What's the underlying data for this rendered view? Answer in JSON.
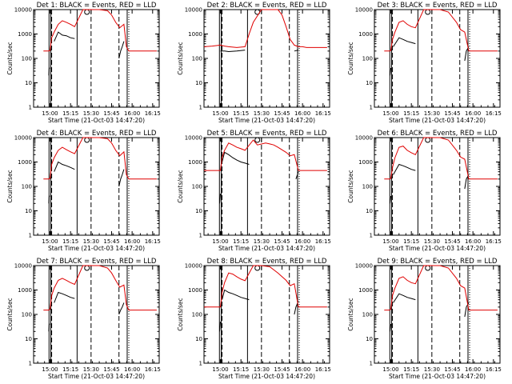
{
  "chart_data": [
    {
      "type": "line",
      "title": "Det 1: BLACK = Events, RED = LLD",
      "xlabel": "Start Time (21-Oct-03 14:47:20)",
      "ylabel": "Counts/sec",
      "yscale": "log",
      "ylim": [
        1,
        10000
      ],
      "xticks": [
        "15:00",
        "15:15",
        "15:30",
        "15:45",
        "16:00",
        "16:15"
      ],
      "yticks": [
        "1",
        "10",
        "100",
        "1000",
        "10000"
      ],
      "series": [
        {
          "color": "#000000",
          "x": [
            14.97,
            14.985,
            14.99,
            15.0,
            15.01,
            15.05,
            15.1,
            15.15,
            15.2,
            15.25,
            15.3,
            15.83,
            15.84,
            15.86,
            15.88,
            15.9,
            15.93,
            15.95
          ],
          "y": [
            null,
            20,
            40,
            40,
            null,
            500,
            1200,
            900,
            850,
            700,
            650,
            null,
            100,
            200,
            300,
            500,
            null,
            null
          ]
        },
        {
          "color": "#e00000",
          "x": [
            14.92,
            14.95,
            14.98,
            15.0,
            15.02,
            15.05,
            15.1,
            15.15,
            15.2,
            15.25,
            15.3,
            15.4,
            15.5,
            15.6,
            15.7,
            15.75,
            15.8,
            15.85,
            15.9,
            15.93,
            15.96,
            16.0,
            16.05,
            16.1,
            16.15,
            16.2,
            16.25,
            16.3
          ],
          "y": [
            200,
            200,
            200,
            210,
            700,
            1200,
            2500,
            3500,
            3000,
            2500,
            2000,
            10000,
            10000,
            10000,
            9000,
            6000,
            3000,
            1800,
            2500,
            300,
            200,
            200,
            200,
            200,
            200,
            200,
            200,
            200
          ]
        }
      ]
    },
    {
      "type": "line",
      "title": "Det 2: BLACK = Events, RED = LLD",
      "xlabel": "Start Time (21-Oct-03 14:47:20)",
      "ylabel": "Counts/sec",
      "yscale": "log",
      "ylim": [
        1,
        10000
      ],
      "xticks": [
        "15:00",
        "15:15",
        "15:30",
        "15:45",
        "16:00",
        "16:15"
      ],
      "yticks": [
        "1",
        "10",
        "100",
        "1000",
        "10000"
      ],
      "series": [
        {
          "color": "#000000",
          "x": [
            15.0,
            15.01,
            15.05,
            15.1,
            15.2,
            15.3,
            15.35,
            15.4,
            15.85,
            15.9,
            15.95,
            16.0
          ],
          "y": [
            200,
            200,
            200,
            190,
            200,
            220,
            null,
            null,
            null,
            200,
            220,
            null
          ]
        },
        {
          "color": "#e00000",
          "x": [
            14.8,
            14.9,
            15.0,
            15.05,
            15.1,
            15.2,
            15.3,
            15.35,
            15.4,
            15.5,
            15.6,
            15.7,
            15.75,
            15.8,
            15.85,
            15.9,
            15.95,
            16.0,
            16.05,
            16.1,
            16.2,
            16.3
          ],
          "y": [
            300,
            320,
            350,
            320,
            300,
            280,
            300,
            1000,
            3000,
            10000,
            10000,
            10000,
            6000,
            2000,
            600,
            350,
            300,
            300,
            280,
            280,
            280,
            280
          ]
        }
      ]
    },
    {
      "type": "line",
      "title": "Det 3: BLACK = Events, RED = LLD",
      "xlabel": "Start Time (21-Oct-03 14:47:20)",
      "ylabel": "Counts/sec",
      "yscale": "log",
      "ylim": [
        1,
        10000
      ],
      "xticks": [
        "15:00",
        "15:15",
        "15:30",
        "15:45",
        "16:00",
        "16:15"
      ],
      "yticks": [
        "1",
        "10",
        "100",
        "1000",
        "10000"
      ],
      "series": [
        {
          "color": "#000000",
          "x": [
            14.98,
            14.99,
            15.0,
            15.01,
            15.03,
            15.1,
            15.15,
            15.2,
            15.25,
            15.3,
            15.85,
            15.9,
            15.92,
            15.95,
            15.98,
            16.0
          ],
          "y": [
            null,
            20,
            40,
            null,
            300,
            700,
            600,
            500,
            450,
            400,
            null,
            80,
            200,
            300,
            null,
            null
          ]
        },
        {
          "color": "#e00000",
          "x": [
            14.92,
            14.95,
            14.98,
            15.0,
            15.02,
            15.05,
            15.1,
            15.15,
            15.2,
            15.25,
            15.3,
            15.4,
            15.5,
            15.6,
            15.7,
            15.8,
            15.85,
            15.9,
            15.95,
            16.0,
            16.05,
            16.1,
            16.2,
            16.3
          ],
          "y": [
            200,
            200,
            200,
            210,
            600,
            1200,
            3000,
            3500,
            2500,
            2000,
            1800,
            10000,
            10000,
            10000,
            8000,
            3000,
            1500,
            1200,
            200,
            200,
            200,
            200,
            200,
            200
          ]
        }
      ]
    },
    {
      "type": "line",
      "title": "Det 4: BLACK = Events, RED = LLD",
      "xlabel": "Start Time (21-Oct-03 14:47:20)",
      "ylabel": "Counts/sec",
      "yscale": "log",
      "ylim": [
        1,
        10000
      ],
      "xticks": [
        "15:00",
        "15:15",
        "15:30",
        "15:45",
        "16:00",
        "16:15"
      ],
      "yticks": [
        "1",
        "10",
        "100",
        "1000",
        "10000"
      ],
      "series": [
        {
          "color": "#000000",
          "x": [
            14.97,
            14.985,
            14.99,
            15.0,
            15.01,
            15.05,
            15.1,
            15.15,
            15.2,
            15.25,
            15.3,
            15.83,
            15.84,
            15.86,
            15.88,
            15.9,
            15.93,
            15.95
          ],
          "y": [
            null,
            20,
            40,
            40,
            null,
            400,
            1000,
            800,
            700,
            600,
            500,
            null,
            100,
            200,
            300,
            500,
            null,
            null
          ]
        },
        {
          "color": "#e00000",
          "x": [
            14.92,
            14.95,
            14.98,
            15.0,
            15.02,
            15.05,
            15.1,
            15.15,
            15.2,
            15.25,
            15.3,
            15.4,
            15.5,
            15.6,
            15.7,
            15.75,
            15.8,
            15.85,
            15.9,
            15.93,
            15.96,
            16.0,
            16.05,
            16.1,
            16.15,
            16.2,
            16.25,
            16.3
          ],
          "y": [
            200,
            200,
            200,
            210,
            800,
            1500,
            3000,
            4000,
            3200,
            2600,
            2200,
            10000,
            10000,
            10000,
            9000,
            6000,
            3000,
            1800,
            2600,
            300,
            200,
            200,
            200,
            200,
            200,
            200,
            200,
            200
          ]
        }
      ]
    },
    {
      "type": "line",
      "title": "Det 5: BLACK = Events, RED = LLD",
      "xlabel": "Start Time (21-Oct-03 14:47:20)",
      "ylabel": "Counts/sec",
      "yscale": "log",
      "ylim": [
        1,
        10000
      ],
      "xticks": [
        "15:00",
        "15:15",
        "15:30",
        "15:45",
        "16:00",
        "16:15"
      ],
      "yticks": [
        "1",
        "10",
        "100",
        "1000",
        "10000"
      ],
      "series": [
        {
          "color": "#000000",
          "x": [
            14.98,
            14.99,
            15.0,
            15.01,
            15.02,
            15.05,
            15.1,
            15.15,
            15.2,
            15.25,
            15.3,
            15.35,
            15.9,
            15.92,
            15.95,
            15.98,
            16.0
          ],
          "y": [
            null,
            20,
            50,
            null,
            1000,
            2500,
            2000,
            1500,
            1200,
            1000,
            900,
            800,
            null,
            200,
            400,
            null,
            null
          ]
        },
        {
          "color": "#e00000",
          "x": [
            14.8,
            14.9,
            15.0,
            15.02,
            15.05,
            15.1,
            15.15,
            15.2,
            15.25,
            15.3,
            15.4,
            15.45,
            15.55,
            15.6,
            15.65,
            15.7,
            15.8,
            15.85,
            15.9,
            15.95,
            16.0,
            16.05,
            16.1,
            16.2,
            16.3
          ],
          "y": [
            450,
            450,
            450,
            1500,
            3000,
            6000,
            5000,
            4000,
            3500,
            3000,
            8000,
            5000,
            6000,
            5500,
            5000,
            4000,
            2500,
            1800,
            2000,
            450,
            450,
            450,
            450,
            450,
            450
          ]
        }
      ]
    },
    {
      "type": "line",
      "title": "Det 6: BLACK = Events, RED = LLD",
      "xlabel": "Start Time (21-Oct-03 14:47:20)",
      "ylabel": "Counts/sec",
      "yscale": "log",
      "ylim": [
        1,
        10000
      ],
      "xticks": [
        "15:00",
        "15:15",
        "15:30",
        "15:45",
        "16:00",
        "16:15"
      ],
      "yticks": [
        "1",
        "10",
        "100",
        "1000",
        "10000"
      ],
      "series": [
        {
          "color": "#000000",
          "x": [
            14.98,
            14.99,
            15.0,
            15.01,
            15.03,
            15.1,
            15.15,
            15.2,
            15.25,
            15.3,
            15.85,
            15.9,
            15.92,
            15.95,
            15.98,
            16.0
          ],
          "y": [
            null,
            20,
            40,
            null,
            300,
            800,
            700,
            600,
            500,
            450,
            null,
            80,
            200,
            300,
            null,
            null
          ]
        },
        {
          "color": "#e00000",
          "x": [
            14.92,
            14.95,
            14.98,
            15.0,
            15.02,
            15.05,
            15.1,
            15.15,
            15.2,
            15.25,
            15.3,
            15.4,
            15.5,
            15.6,
            15.7,
            15.8,
            15.85,
            15.9,
            15.95,
            16.0,
            16.05,
            16.1,
            16.2,
            16.3
          ],
          "y": [
            200,
            200,
            200,
            210,
            600,
            1500,
            4000,
            4500,
            3000,
            2400,
            2000,
            10000,
            10000,
            10000,
            8000,
            3000,
            1600,
            1300,
            200,
            200,
            200,
            200,
            200,
            200
          ]
        }
      ]
    },
    {
      "type": "line",
      "title": "Det 7: BLACK = Events, RED = LLD",
      "xlabel": "Start Time (21-Oct-03 14:47:20)",
      "ylabel": "Counts/sec",
      "yscale": "log",
      "ylim": [
        1,
        10000
      ],
      "xticks": [
        "15:00",
        "15:15",
        "15:30",
        "15:45",
        "16:00",
        "16:15"
      ],
      "yticks": [
        "1",
        "10",
        "100",
        "1000",
        "10000"
      ],
      "series": [
        {
          "color": "#000000",
          "x": [
            14.97,
            14.985,
            14.99,
            15.0,
            15.01,
            15.05,
            15.1,
            15.15,
            15.2,
            15.25,
            15.3,
            15.83,
            15.84,
            15.86,
            15.88,
            15.9,
            15.93,
            15.95
          ],
          "y": [
            null,
            20,
            40,
            40,
            null,
            300,
            800,
            700,
            600,
            500,
            450,
            null,
            100,
            150,
            200,
            300,
            null,
            null
          ]
        },
        {
          "color": "#e00000",
          "x": [
            14.92,
            14.95,
            14.98,
            15.0,
            15.02,
            15.05,
            15.1,
            15.15,
            15.2,
            15.25,
            15.3,
            15.4,
            15.5,
            15.6,
            15.7,
            15.75,
            15.8,
            15.85,
            15.9,
            15.93,
            15.96,
            16.0,
            16.05,
            16.1,
            16.15,
            16.2,
            16.25,
            16.3
          ],
          "y": [
            150,
            150,
            150,
            160,
            600,
            1200,
            2500,
            3000,
            2500,
            2000,
            1700,
            10000,
            10000,
            10000,
            8000,
            5000,
            2500,
            1300,
            1600,
            250,
            150,
            150,
            150,
            150,
            150,
            150,
            150,
            150
          ]
        }
      ]
    },
    {
      "type": "line",
      "title": "Det 8: BLACK = Events, RED = LLD",
      "xlabel": "Start Time (21-Oct-03 14:47:20)",
      "ylabel": "Counts/sec",
      "yscale": "log",
      "ylim": [
        1,
        10000
      ],
      "xticks": [
        "15:00",
        "15:15",
        "15:30",
        "15:45",
        "16:00",
        "16:15"
      ],
      "yticks": [
        "1",
        "10",
        "100",
        "1000",
        "10000"
      ],
      "series": [
        {
          "color": "#000000",
          "x": [
            14.98,
            14.99,
            15.0,
            15.01,
            15.02,
            15.05,
            15.1,
            15.15,
            15.2,
            15.25,
            15.3,
            15.35,
            15.85,
            15.9,
            15.92,
            15.95,
            15.98,
            16.0
          ],
          "y": [
            null,
            20,
            50,
            null,
            400,
            1000,
            800,
            700,
            600,
            500,
            450,
            400,
            null,
            100,
            200,
            350,
            null,
            null
          ]
        },
        {
          "color": "#e00000",
          "x": [
            14.8,
            14.9,
            15.0,
            15.02,
            15.05,
            15.1,
            15.15,
            15.2,
            15.25,
            15.3,
            15.4,
            15.5,
            15.6,
            15.7,
            15.8,
            15.85,
            15.9,
            15.95,
            16.0,
            16.05,
            16.1,
            16.2,
            16.3
          ],
          "y": [
            200,
            200,
            200,
            800,
            2000,
            5000,
            4500,
            3500,
            2800,
            2400,
            10000,
            10000,
            9000,
            5000,
            2500,
            1500,
            1800,
            200,
            200,
            200,
            200,
            200,
            200
          ]
        }
      ]
    },
    {
      "type": "line",
      "title": "Det 9: BLACK = Events, RED = LLD",
      "xlabel": "Start Time (21-Oct-03 14:47:20)",
      "ylabel": "Counts/sec",
      "yscale": "log",
      "ylim": [
        1,
        10000
      ],
      "xticks": [
        "15:00",
        "15:15",
        "15:30",
        "15:45",
        "16:00",
        "16:15"
      ],
      "yticks": [
        "1",
        "10",
        "100",
        "1000",
        "10000"
      ],
      "series": [
        {
          "color": "#000000",
          "x": [
            14.98,
            14.99,
            15.0,
            15.01,
            15.03,
            15.1,
            15.15,
            15.2,
            15.25,
            15.3,
            15.85,
            15.9,
            15.92,
            15.95,
            15.98,
            16.0
          ],
          "y": [
            null,
            20,
            40,
            null,
            300,
            700,
            600,
            500,
            450,
            400,
            null,
            80,
            200,
            300,
            null,
            null
          ]
        },
        {
          "color": "#e00000",
          "x": [
            14.92,
            14.95,
            14.98,
            15.0,
            15.02,
            15.05,
            15.1,
            15.15,
            15.2,
            15.25,
            15.3,
            15.4,
            15.5,
            15.6,
            15.7,
            15.8,
            15.85,
            15.9,
            15.95,
            16.0,
            16.05,
            16.1,
            16.2,
            16.3
          ],
          "y": [
            150,
            150,
            150,
            160,
            600,
            1200,
            3000,
            3500,
            2500,
            2000,
            1800,
            10000,
            10000,
            10000,
            8000,
            3000,
            1500,
            1200,
            150,
            150,
            150,
            150,
            150,
            150
          ]
        }
      ]
    }
  ]
}
